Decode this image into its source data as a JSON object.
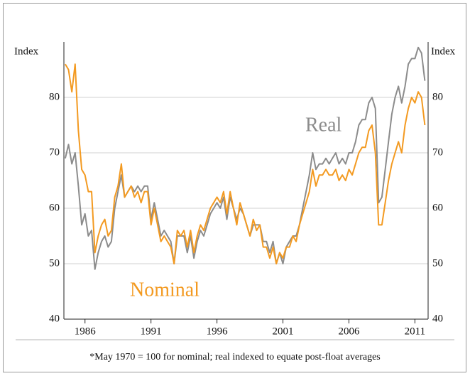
{
  "chart_data": {
    "type": "line",
    "y_label": "Index",
    "y2_label": "Index",
    "annotations": [
      "Real",
      "Nominal"
    ],
    "footnote": "*May 1970 = 100 for nominal; real indexed to equate post-float averages",
    "xlim": [
      1984.4,
      2012
    ],
    "xticks": [
      1986,
      1991,
      1996,
      2001,
      2006,
      2011
    ],
    "ylim": [
      40,
      90
    ],
    "yticks": [
      40,
      50,
      60,
      70,
      80
    ],
    "y2lim": [
      40,
      90
    ],
    "y2ticks": [
      40,
      50,
      60,
      70,
      80
    ],
    "grid": true,
    "x": [
      1984.5,
      1984.75,
      1985,
      1985.25,
      1985.5,
      1985.75,
      1986,
      1986.25,
      1986.5,
      1986.75,
      1987,
      1987.25,
      1987.5,
      1987.75,
      1988,
      1988.25,
      1988.5,
      1988.75,
      1989,
      1989.25,
      1989.5,
      1989.75,
      1990,
      1990.25,
      1990.5,
      1990.75,
      1991,
      1991.25,
      1991.5,
      1991.75,
      1992,
      1992.25,
      1992.5,
      1992.75,
      1993,
      1993.25,
      1993.5,
      1993.75,
      1994,
      1994.25,
      1994.5,
      1994.75,
      1995,
      1995.25,
      1995.5,
      1995.75,
      1996,
      1996.25,
      1996.5,
      1996.75,
      1997,
      1997.25,
      1997.5,
      1997.75,
      1998,
      1998.25,
      1998.5,
      1998.75,
      1999,
      1999.25,
      1999.5,
      1999.75,
      2000,
      2000.25,
      2000.5,
      2000.75,
      2001,
      2001.25,
      2001.5,
      2001.75,
      2002,
      2002.25,
      2002.5,
      2002.75,
      2003,
      2003.25,
      2003.5,
      2003.75,
      2004,
      2004.25,
      2004.5,
      2004.75,
      2005,
      2005.25,
      2005.5,
      2005.75,
      2006,
      2006.25,
      2006.5,
      2006.75,
      2007,
      2007.25,
      2007.5,
      2007.75,
      2008,
      2008.25,
      2008.5,
      2008.75,
      2009,
      2009.25,
      2009.5,
      2009.75,
      2010,
      2010.25,
      2010.5,
      2010.75,
      2011,
      2011.25,
      2011.5,
      2011.75
    ],
    "series": [
      {
        "name": "Real",
        "color": "#8c8c8c",
        "values": [
          69,
          71.5,
          68,
          70,
          64,
          57,
          59,
          55,
          56,
          49,
          52,
          54,
          55,
          53,
          54,
          60,
          63,
          66,
          62,
          63,
          64,
          63,
          64,
          63,
          64,
          64,
          58,
          61,
          58,
          55,
          56,
          55,
          54,
          50,
          55,
          55,
          55,
          52,
          55,
          51,
          54,
          56,
          55,
          57,
          59,
          60,
          61,
          60,
          62,
          58,
          62,
          60,
          58,
          60,
          59,
          57,
          55,
          57,
          57,
          57,
          54,
          54,
          52,
          54,
          50,
          52,
          50,
          53,
          54,
          55,
          55,
          57,
          60,
          63,
          66,
          70,
          67,
          68,
          68,
          69,
          68,
          69,
          70,
          68,
          69,
          68,
          70,
          70,
          72,
          75,
          76,
          76,
          79,
          80,
          78,
          61,
          62,
          67,
          72,
          77,
          80,
          82,
          79,
          82,
          86,
          87,
          87,
          89,
          88,
          83
        ]
      },
      {
        "name": "Nominal",
        "color": "#f39a21",
        "values": [
          86,
          85,
          81,
          86,
          74,
          67,
          66,
          63,
          63,
          52,
          55,
          57,
          58,
          55,
          56,
          62,
          64,
          68,
          62,
          63,
          64,
          62,
          63,
          61,
          63,
          63,
          57,
          60,
          57,
          54,
          55,
          54,
          53,
          50,
          56,
          55,
          56,
          53,
          56,
          52,
          55,
          57,
          56,
          58,
          60,
          61,
          62,
          61,
          63,
          59,
          63,
          60,
          57,
          61,
          59,
          57,
          55,
          58,
          56,
          57,
          53,
          53,
          51,
          53,
          50,
          52,
          51,
          53,
          53,
          55,
          54,
          57,
          59,
          61,
          63,
          67,
          64,
          66,
          66,
          67,
          66,
          66,
          67,
          65,
          66,
          65,
          67,
          66,
          68,
          70,
          71,
          71,
          74,
          75,
          70,
          57,
          57,
          61,
          65,
          68,
          70,
          72,
          70,
          75,
          78,
          80,
          79,
          81,
          80,
          75
        ]
      }
    ]
  }
}
